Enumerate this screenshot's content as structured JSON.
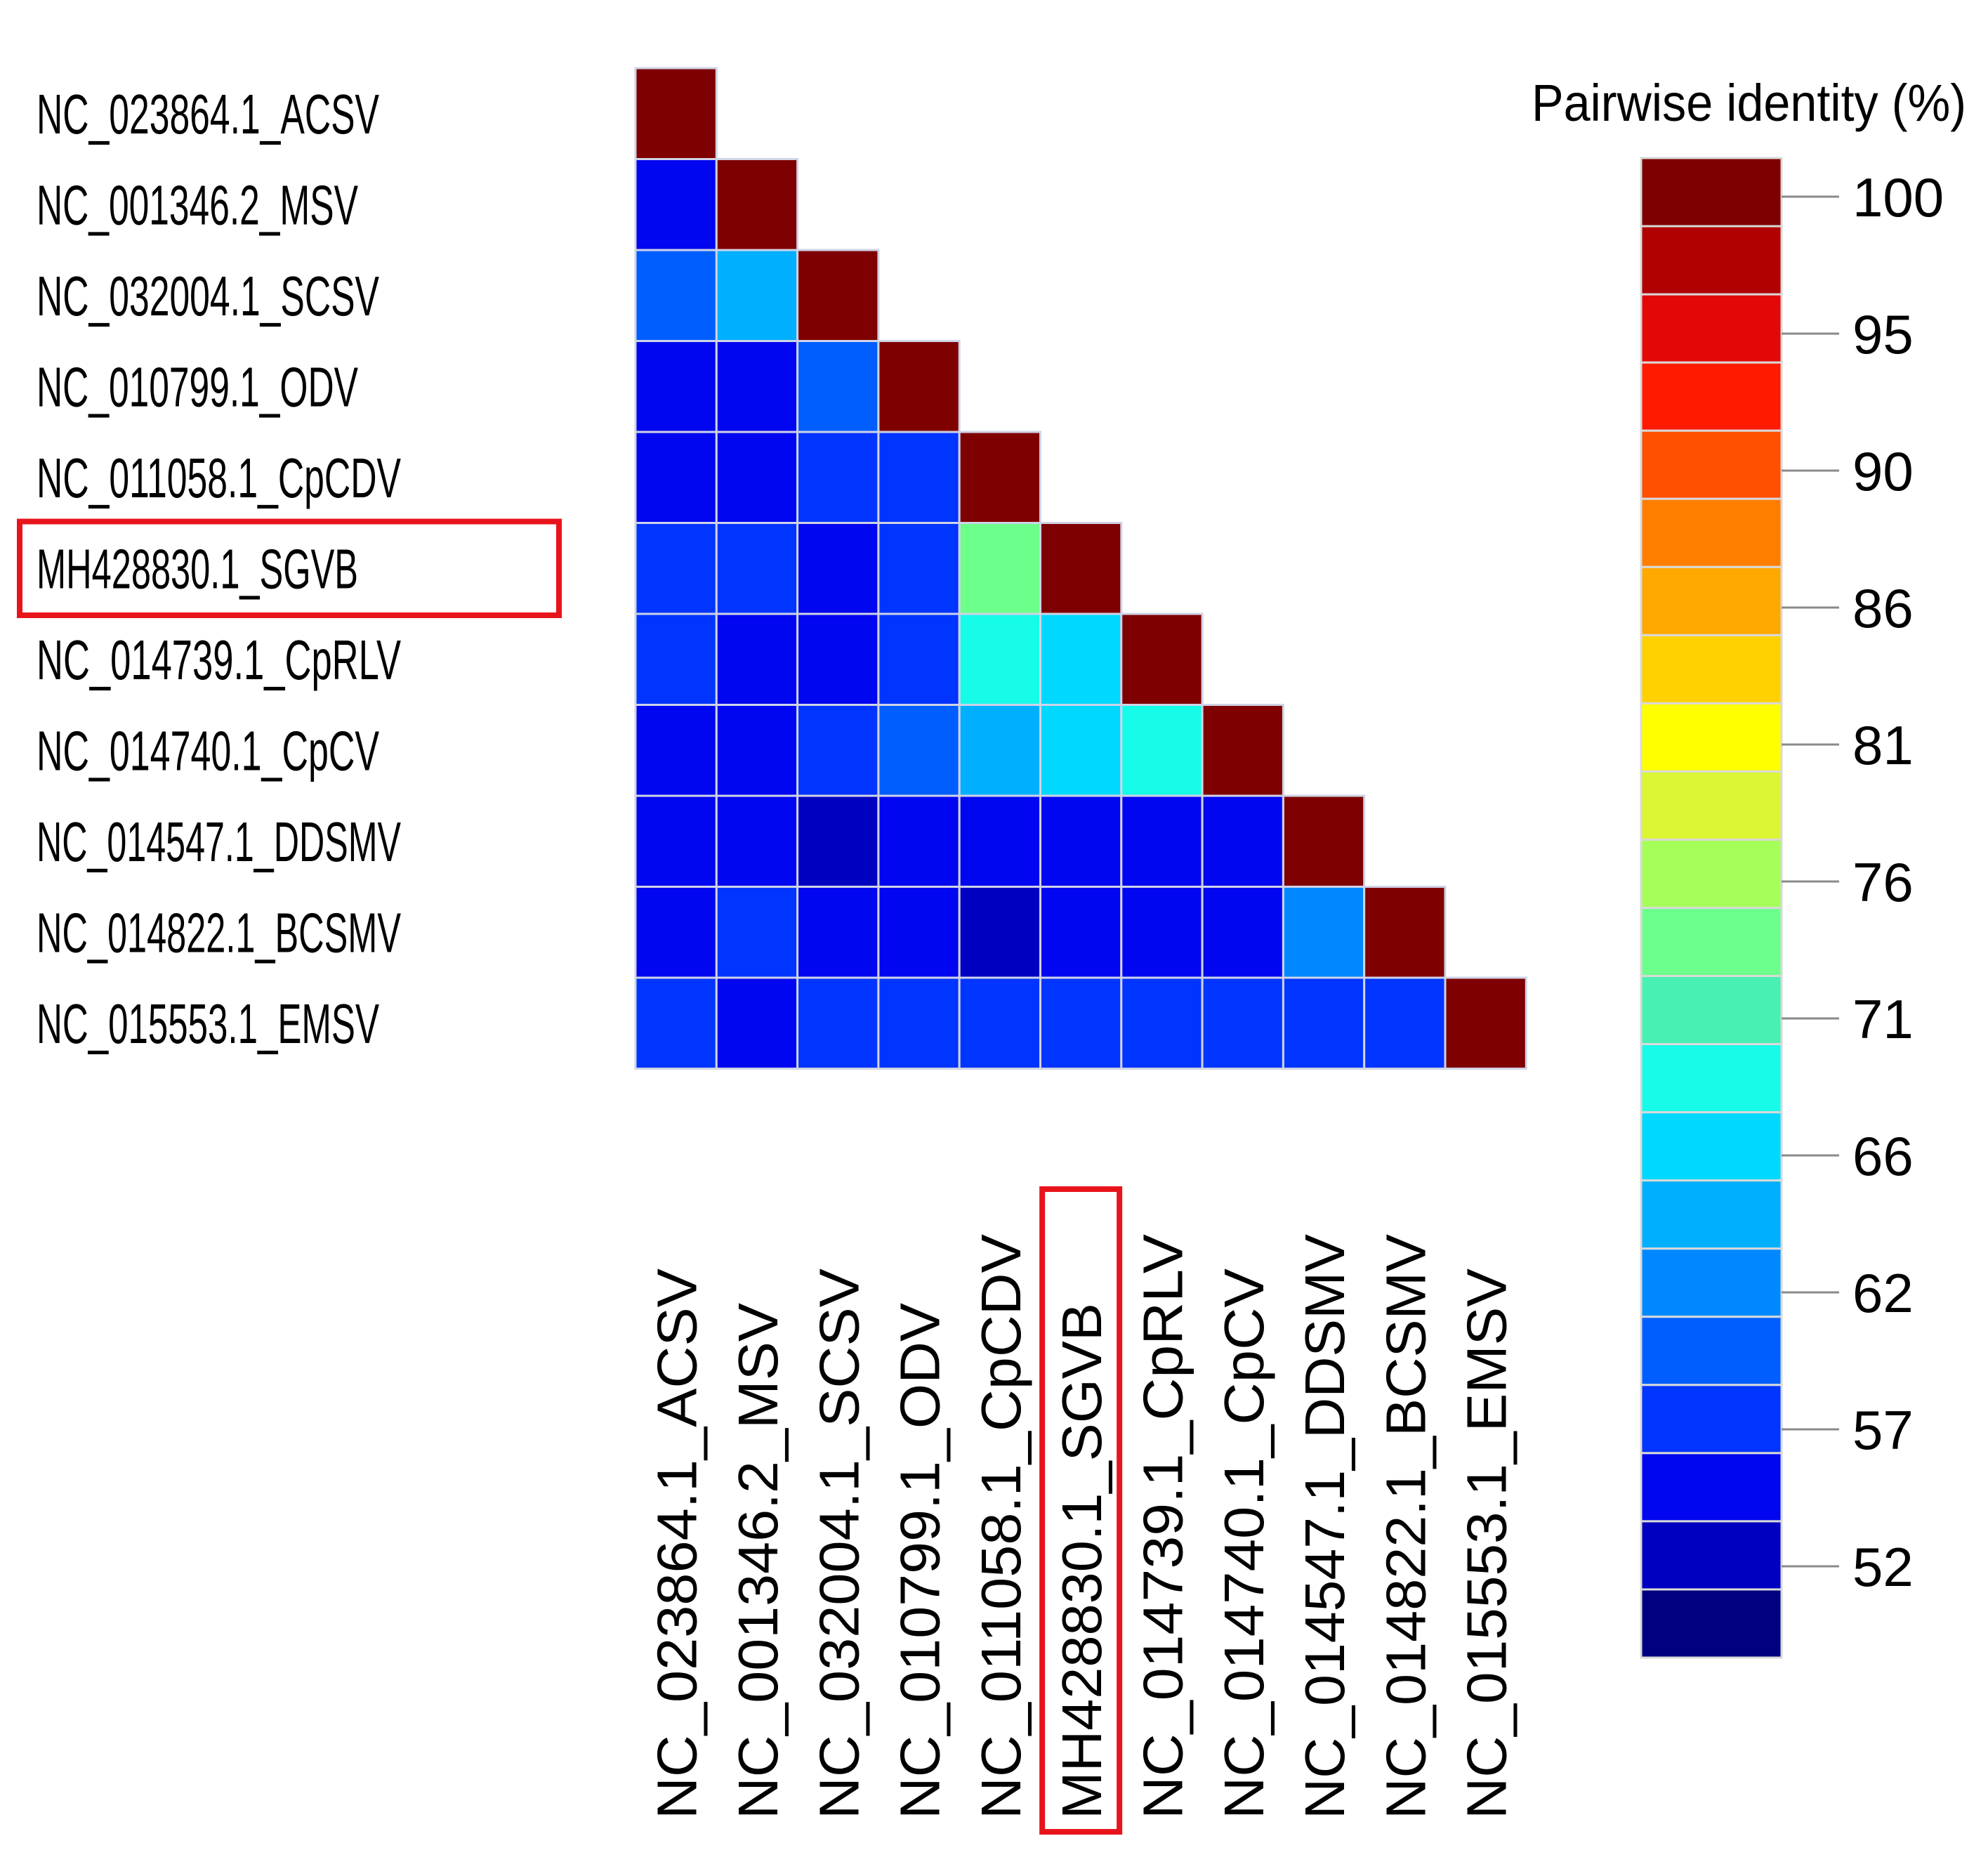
{
  "chart_data": {
    "type": "heatmap",
    "subtype": "lower-triangular pairwise identity matrix",
    "labels": [
      "NC_023864.1_ACSV",
      "NC_001346.2_MSV",
      "NC_032004.1_SCSV",
      "NC_010799.1_ODV",
      "NC_011058.1_CpCDV",
      "MH428830.1_SGVB",
      "NC_014739.1_CpRLV",
      "NC_014740.1_CpCV",
      "NC_014547.1_DDSMV",
      "NC_014822.1_BCSMV",
      "NC_015553.1_EMSV"
    ],
    "highlighted_label": "MH428830.1_SGVB",
    "highlight_color": "#e8141c",
    "values": [
      [
        100
      ],
      [
        53,
        100
      ],
      [
        56,
        63,
        100
      ],
      [
        53,
        53,
        56,
        100
      ],
      [
        53,
        53,
        54,
        54,
        100
      ],
      [
        55,
        54,
        53,
        54,
        72,
        100
      ],
      [
        55,
        53,
        53,
        54,
        66,
        65,
        100
      ],
      [
        51,
        53,
        54,
        56,
        62,
        65,
        67,
        100
      ],
      [
        53,
        51,
        49,
        53,
        52,
        53,
        53,
        52,
        100
      ],
      [
        53,
        54,
        52,
        51,
        50,
        52,
        51,
        51,
        59,
        100
      ],
      [
        55,
        53,
        54,
        54,
        54,
        54,
        55,
        55,
        55,
        54,
        100
      ]
    ],
    "legend": {
      "title": "Pairwise identity (%)",
      "ticks": [
        100,
        95,
        90,
        86,
        81,
        76,
        71,
        66,
        62,
        57,
        52
      ],
      "colors": [
        "#7f0000",
        "#b10101",
        "#e40707",
        "#ff1a00",
        "#ff4f00",
        "#ff7e00",
        "#ffa800",
        "#ffd100",
        "#ffff00",
        "#dbf632",
        "#a6ff59",
        "#6dff8b",
        "#49f0b3",
        "#17fbe9",
        "#00d8ff",
        "#00b0ff",
        "#0089ff",
        "#005eff",
        "#0034ff",
        "#0006ef",
        "#0000c0",
        "#000080"
      ],
      "range": [
        47,
        100
      ]
    },
    "xlabel": "",
    "ylabel": ""
  }
}
